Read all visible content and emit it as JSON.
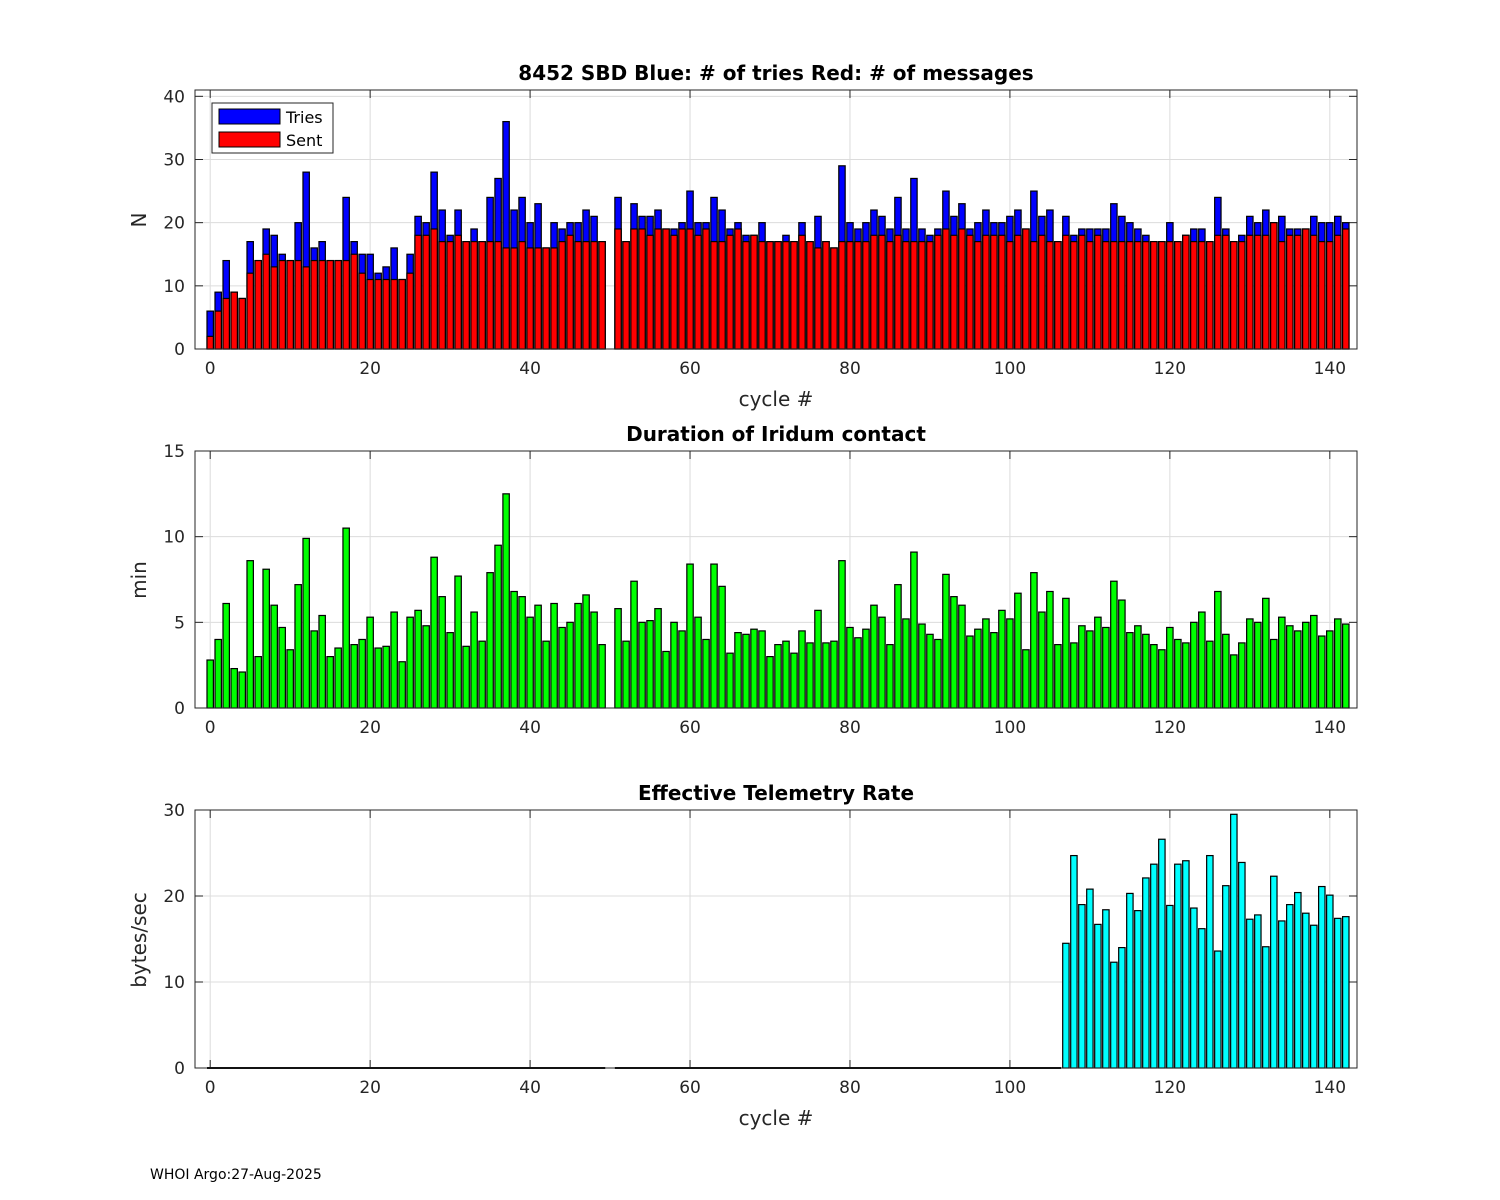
{
  "footer": "WHOI Argo:27-Aug-2025",
  "colors": {
    "tries": "#0000ff",
    "sent": "#ff0000",
    "duration": "#00ff00",
    "rate": "#00ffff"
  },
  "chart_data": [
    {
      "type": "bar",
      "stacked_overlay": true,
      "title": "8452 SBD  Blue: # of tries   Red: # of messages",
      "xlabel": "cycle #",
      "ylabel": "N",
      "xlim": [
        -1.9,
        143.4
      ],
      "ylim": [
        0,
        41
      ],
      "xticks": [
        "0",
        "20",
        "40",
        "60",
        "80",
        "100",
        "120",
        "140"
      ],
      "yticks": [
        "0",
        "10",
        "20",
        "30",
        "40"
      ],
      "grid": true,
      "legend": {
        "placement": "top-left",
        "entries": [
          "Tries",
          "Sent"
        ]
      },
      "x_start": 0,
      "series": [
        {
          "name": "Tries",
          "values": [
            6,
            9,
            14,
            9,
            8,
            17,
            14,
            19,
            18,
            15,
            14,
            20,
            28,
            16,
            17,
            14,
            14,
            24,
            17,
            15,
            15,
            12,
            13,
            16,
            11,
            15,
            21,
            20,
            28,
            22,
            18,
            22,
            17,
            19,
            17,
            24,
            27,
            36,
            22,
            24,
            20,
            23,
            16,
            20,
            19,
            20,
            20,
            22,
            21,
            17,
            null,
            24,
            17,
            23,
            21,
            21,
            22,
            19,
            19,
            20,
            25,
            20,
            20,
            24,
            22,
            19,
            20,
            18,
            18,
            20,
            17,
            17,
            18,
            17,
            20,
            17,
            21,
            17,
            16,
            29,
            20,
            19,
            20,
            22,
            21,
            19,
            24,
            19,
            27,
            19,
            18,
            19,
            25,
            21,
            23,
            19,
            20,
            22,
            20,
            20,
            21,
            22,
            19,
            25,
            21,
            22,
            17,
            21,
            18,
            19,
            19,
            19,
            19,
            23,
            21,
            20,
            19,
            18,
            17,
            17,
            20,
            17,
            18,
            19,
            19,
            17,
            24,
            19,
            17,
            18,
            21,
            20,
            22,
            20,
            21,
            19,
            19,
            19,
            21,
            20,
            20,
            21,
            20
          ]
        },
        {
          "name": "Sent",
          "values": [
            2,
            6,
            8,
            9,
            8,
            12,
            14,
            15,
            13,
            14,
            14,
            14,
            13,
            14,
            14,
            14,
            14,
            14,
            15,
            12,
            11,
            11,
            11,
            11,
            11,
            12,
            18,
            18,
            19,
            17,
            17,
            18,
            17,
            17,
            17,
            17,
            17,
            16,
            16,
            17,
            16,
            16,
            16,
            16,
            17,
            18,
            17,
            17,
            17,
            17,
            null,
            19,
            17,
            19,
            19,
            18,
            19,
            19,
            18,
            19,
            19,
            18,
            19,
            17,
            17,
            18,
            19,
            17,
            18,
            17,
            17,
            17,
            17,
            17,
            18,
            17,
            16,
            17,
            16,
            17,
            17,
            17,
            17,
            18,
            18,
            17,
            18,
            17,
            17,
            17,
            17,
            18,
            19,
            18,
            19,
            18,
            17,
            18,
            18,
            18,
            17,
            18,
            19,
            17,
            18,
            17,
            17,
            18,
            17,
            18,
            17,
            18,
            17,
            17,
            17,
            17,
            17,
            17,
            17,
            17,
            17,
            17,
            18,
            17,
            17,
            17,
            18,
            18,
            17,
            17,
            18,
            18,
            18,
            20,
            17,
            18,
            18,
            19,
            18,
            17,
            17,
            18,
            19
          ]
        }
      ]
    },
    {
      "type": "bar",
      "title": "Duration of Iridum contact",
      "xlabel": "",
      "ylabel": "min",
      "xlim": [
        -1.9,
        143.4
      ],
      "ylim": [
        0,
        15
      ],
      "xticks": [
        "0",
        "20",
        "40",
        "60",
        "80",
        "100",
        "120",
        "140"
      ],
      "yticks": [
        "0",
        "5",
        "10",
        "15"
      ],
      "grid": true,
      "x_start": 0,
      "series": [
        {
          "name": "Duration",
          "values": [
            2.8,
            4.0,
            6.1,
            2.3,
            2.1,
            8.6,
            3.0,
            8.1,
            6.0,
            4.7,
            3.4,
            7.2,
            9.9,
            4.5,
            5.4,
            3.0,
            3.5,
            10.5,
            3.7,
            4.0,
            5.3,
            3.5,
            3.6,
            5.6,
            2.7,
            5.3,
            5.7,
            4.8,
            8.8,
            6.5,
            4.4,
            7.7,
            3.6,
            5.6,
            3.9,
            7.9,
            9.5,
            12.5,
            6.8,
            6.5,
            5.3,
            6.0,
            3.9,
            6.1,
            4.7,
            5.0,
            6.1,
            6.6,
            5.6,
            3.7,
            null,
            5.8,
            3.9,
            7.4,
            5.0,
            5.1,
            5.8,
            3.3,
            5.0,
            4.5,
            8.4,
            5.3,
            4.0,
            8.4,
            7.1,
            3.2,
            4.4,
            4.3,
            4.6,
            4.5,
            3.0,
            3.7,
            3.9,
            3.2,
            4.5,
            3.8,
            5.7,
            3.8,
            3.9,
            8.6,
            4.7,
            4.1,
            4.6,
            6.0,
            5.3,
            3.7,
            7.2,
            5.2,
            9.1,
            4.9,
            4.3,
            4.0,
            7.8,
            6.5,
            6.0,
            4.2,
            4.6,
            5.2,
            4.4,
            5.7,
            5.2,
            6.7,
            3.4,
            7.9,
            5.6,
            6.8,
            3.7,
            6.4,
            3.8,
            4.8,
            4.5,
            5.3,
            4.7,
            7.4,
            6.3,
            4.4,
            4.8,
            4.3,
            3.7,
            3.4,
            4.7,
            4.0,
            3.8,
            5.0,
            5.6,
            3.9,
            6.8,
            4.3,
            3.1,
            3.8,
            5.2,
            5.0,
            6.4,
            4.0,
            5.3,
            4.8,
            4.5,
            5.0,
            5.4,
            4.2,
            4.5,
            5.2,
            4.9
          ]
        }
      ]
    },
    {
      "type": "bar",
      "title": "Effective Telemetry Rate",
      "xlabel": "cycle #",
      "ylabel": "bytes/sec",
      "xlim": [
        -1.9,
        143.4
      ],
      "ylim": [
        0,
        30
      ],
      "xticks": [
        "0",
        "20",
        "40",
        "60",
        "80",
        "100",
        "120",
        "140"
      ],
      "yticks": [
        "0",
        "10",
        "20",
        "30"
      ],
      "grid": true,
      "x_start": 0,
      "series": [
        {
          "name": "Rate",
          "values": [
            0,
            0,
            0,
            0,
            0,
            0,
            0,
            0,
            0,
            0,
            0,
            0,
            0,
            0,
            0,
            0,
            0,
            0,
            0,
            0,
            0,
            0,
            0,
            0,
            0,
            0,
            0,
            0,
            0,
            0,
            0,
            0,
            0,
            0,
            0,
            0,
            0,
            0,
            0,
            0,
            0,
            0,
            0,
            0,
            0,
            0,
            0,
            0,
            0,
            0,
            null,
            0,
            0,
            0,
            0,
            0,
            0,
            0,
            0,
            0,
            0,
            0,
            0,
            0,
            0,
            0,
            0,
            0,
            0,
            0,
            0,
            0,
            0,
            0,
            0,
            0,
            0,
            0,
            0,
            0,
            0,
            0,
            0,
            0,
            0,
            0,
            0,
            0,
            0,
            0,
            0,
            0,
            0,
            0,
            0,
            0,
            0,
            0,
            0,
            0,
            0,
            0,
            0,
            0,
            0,
            0,
            0,
            14.5,
            24.7,
            19.0,
            20.8,
            16.7,
            18.4,
            12.3,
            14.0,
            20.3,
            18.3,
            22.1,
            23.7,
            26.6,
            18.9,
            23.7,
            24.1,
            18.6,
            16.2,
            24.7,
            13.6,
            21.2,
            29.5,
            23.9,
            17.3,
            17.8,
            14.1,
            22.3,
            17.1,
            19.0,
            20.4,
            18.0,
            16.6,
            21.1,
            20.1,
            17.4,
            17.6
          ]
        }
      ]
    }
  ]
}
